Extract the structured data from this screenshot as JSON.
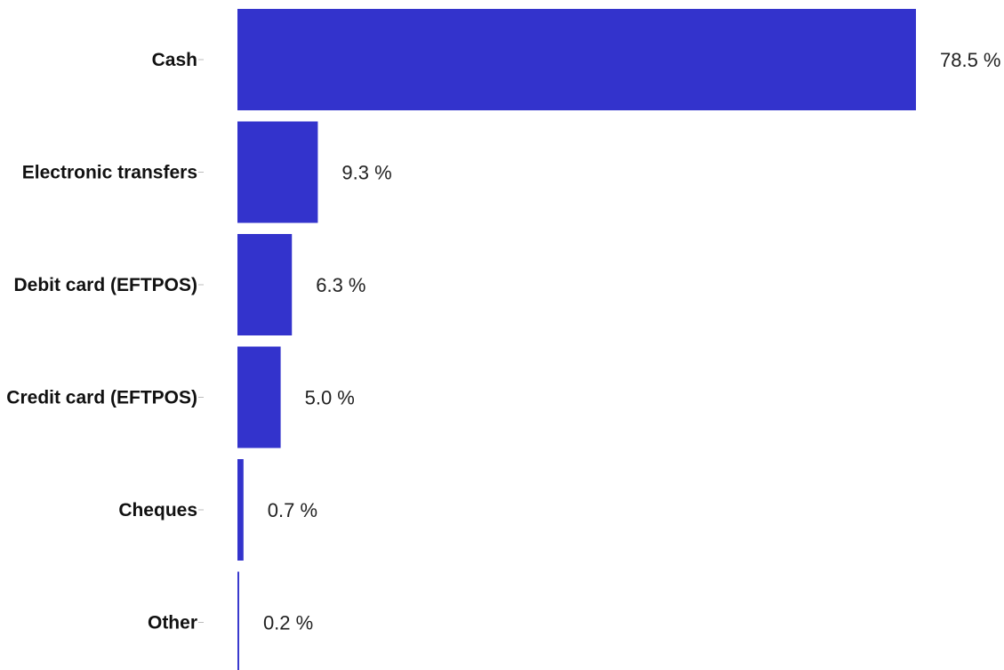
{
  "chart_data": {
    "type": "bar",
    "orientation": "horizontal",
    "categories": [
      "Cash",
      "Electronic transfers",
      "Debit card (EFTPOS)",
      "Credit card (EFTPOS)",
      "Cheques",
      "Other"
    ],
    "values": [
      78.5,
      9.3,
      6.3,
      5.0,
      0.7,
      0.2
    ],
    "value_labels": [
      "78.5 %",
      "9.3 %",
      "6.3 %",
      "5.0 %",
      "0.7 %",
      "0.2 %"
    ],
    "unit": "%",
    "title": "",
    "xlabel": "",
    "ylabel": "",
    "xlim": [
      0,
      78.5
    ],
    "grid": false,
    "legend": "none",
    "bar_color": "#3333cc"
  }
}
